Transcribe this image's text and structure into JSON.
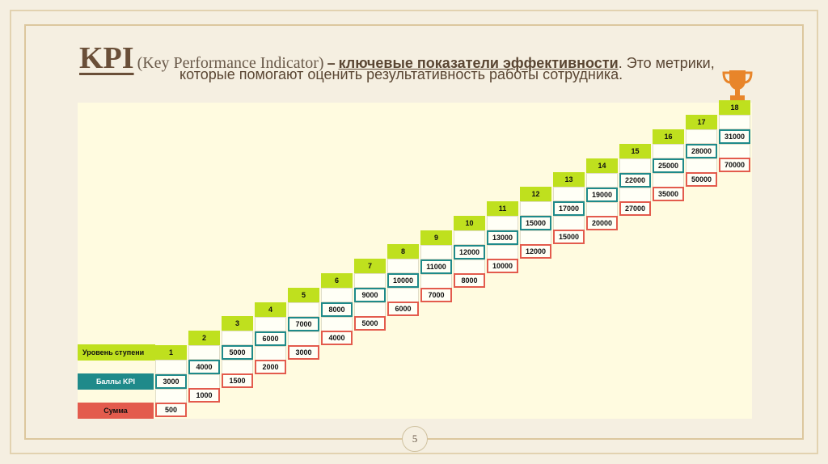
{
  "title": {
    "kpi": "KPI",
    "expansion": "(Key Performance Indicator)",
    "dash": "–",
    "keyword": "ключевые показатели эффективности",
    "rest": ". Это метрики,",
    "line2": "которые помогают оценить результативность работы сотрудника."
  },
  "legend": {
    "level": "Уровень ступени",
    "score": "Баллы KPI",
    "sum": "Сумма"
  },
  "colors": {
    "level": "#bfe01e",
    "score": "#1f8a8a",
    "sum": "#e35b4d"
  },
  "icons": {
    "trophy": "trophy-icon"
  },
  "steps": [
    {
      "level": "1",
      "score": "3000",
      "sum": "500"
    },
    {
      "level": "2",
      "score": "4000",
      "sum": "1000"
    },
    {
      "level": "3",
      "score": "5000",
      "sum": "1500"
    },
    {
      "level": "4",
      "score": "6000",
      "sum": "2000"
    },
    {
      "level": "5",
      "score": "7000",
      "sum": "3000"
    },
    {
      "level": "6",
      "score": "8000",
      "sum": "4000"
    },
    {
      "level": "7",
      "score": "9000",
      "sum": "5000"
    },
    {
      "level": "8",
      "score": "10000",
      "sum": "6000"
    },
    {
      "level": "9",
      "score": "11000",
      "sum": "7000"
    },
    {
      "level": "10",
      "score": "12000",
      "sum": "8000"
    },
    {
      "level": "11",
      "score": "13000",
      "sum": "10000"
    },
    {
      "level": "12",
      "score": "15000",
      "sum": "12000"
    },
    {
      "level": "13",
      "score": "17000",
      "sum": "15000"
    },
    {
      "level": "14",
      "score": "19000",
      "sum": "20000"
    },
    {
      "level": "15",
      "score": "22000",
      "sum": "27000"
    },
    {
      "level": "16",
      "score": "25000",
      "sum": "35000"
    },
    {
      "level": "17",
      "score": "28000",
      "sum": "50000"
    },
    {
      "level": "18",
      "score": "31000",
      "sum": "70000"
    }
  ],
  "page_number": "5"
}
